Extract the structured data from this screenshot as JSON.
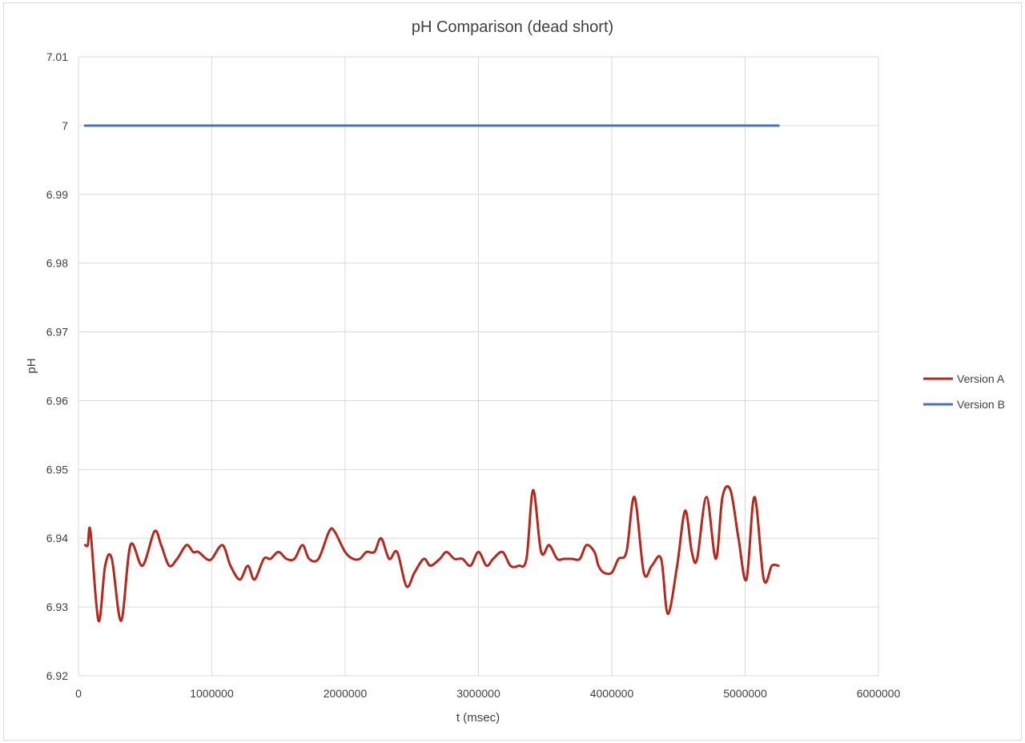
{
  "chart_data": {
    "type": "line",
    "title": "pH Comparison (dead short)",
    "xlabel": "t (msec)",
    "ylabel": "pH",
    "xlim": [
      0,
      6000000
    ],
    "ylim": [
      6.92,
      7.01
    ],
    "x_ticks": [
      0,
      1000000,
      2000000,
      3000000,
      4000000,
      5000000,
      6000000
    ],
    "x_tick_labels": [
      "0",
      "1000000",
      "2000000",
      "3000000",
      "4000000",
      "5000000",
      "6000000"
    ],
    "y_ticks": [
      6.92,
      6.93,
      6.94,
      6.95,
      6.96,
      6.97,
      6.98,
      6.99,
      7.0,
      7.01
    ],
    "y_tick_labels": [
      "6.92",
      "6.93",
      "6.94",
      "6.95",
      "6.96",
      "6.97",
      "6.98",
      "6.99",
      "7",
      "7.01"
    ],
    "grid": true,
    "legend_position": "right",
    "series": [
      {
        "name": "Version A",
        "color": "#b22a1f",
        "x": [
          50000,
          70000,
          90000,
          150000,
          200000,
          250000,
          320000,
          390000,
          480000,
          570000,
          620000,
          680000,
          740000,
          810000,
          860000,
          900000,
          960000,
          1000000,
          1080000,
          1140000,
          1210000,
          1270000,
          1320000,
          1390000,
          1440000,
          1500000,
          1560000,
          1620000,
          1680000,
          1730000,
          1800000,
          1880000,
          1920000,
          2000000,
          2060000,
          2110000,
          2160000,
          2220000,
          2270000,
          2330000,
          2390000,
          2460000,
          2520000,
          2590000,
          2640000,
          2710000,
          2760000,
          2820000,
          2880000,
          2940000,
          3000000,
          3060000,
          3110000,
          3180000,
          3240000,
          3300000,
          3360000,
          3410000,
          3470000,
          3530000,
          3590000,
          3640000,
          3700000,
          3760000,
          3810000,
          3870000,
          3900000,
          3940000,
          4000000,
          4050000,
          4110000,
          4170000,
          4240000,
          4300000,
          4370000,
          4420000,
          4490000,
          4550000,
          4600000,
          4640000,
          4710000,
          4780000,
          4830000,
          4890000,
          4950000,
          5010000,
          5070000,
          5140000,
          5200000,
          5250000
        ],
        "y": [
          6.939,
          6.939,
          6.941,
          6.928,
          6.936,
          6.937,
          6.928,
          6.939,
          6.936,
          6.941,
          6.939,
          6.936,
          6.937,
          6.939,
          6.938,
          6.938,
          6.937,
          6.937,
          6.939,
          6.936,
          6.934,
          6.936,
          6.934,
          6.937,
          6.937,
          6.938,
          6.937,
          6.937,
          6.939,
          6.937,
          6.937,
          6.941,
          6.941,
          6.938,
          6.937,
          6.937,
          6.938,
          6.938,
          6.94,
          6.937,
          6.938,
          6.933,
          6.935,
          6.937,
          6.936,
          6.937,
          6.938,
          6.937,
          6.937,
          6.936,
          6.938,
          6.936,
          6.937,
          6.938,
          6.936,
          6.936,
          6.937,
          6.947,
          6.938,
          6.939,
          6.937,
          6.937,
          6.937,
          6.937,
          6.939,
          6.938,
          6.936,
          6.935,
          6.935,
          6.937,
          6.938,
          6.946,
          6.935,
          6.936,
          6.937,
          6.929,
          6.936,
          6.944,
          6.938,
          6.937,
          6.946,
          6.937,
          6.946,
          6.947,
          6.94,
          6.934,
          6.946,
          6.934,
          6.936,
          6.936
        ]
      },
      {
        "name": "Version B",
        "color": "#4472c4",
        "x": [
          50000,
          1000000,
          2000000,
          3000000,
          4000000,
          5000000,
          5250000
        ],
        "y": [
          7.0,
          7.0,
          7.0,
          7.0,
          7.0,
          7.0,
          7.0
        ]
      }
    ]
  }
}
